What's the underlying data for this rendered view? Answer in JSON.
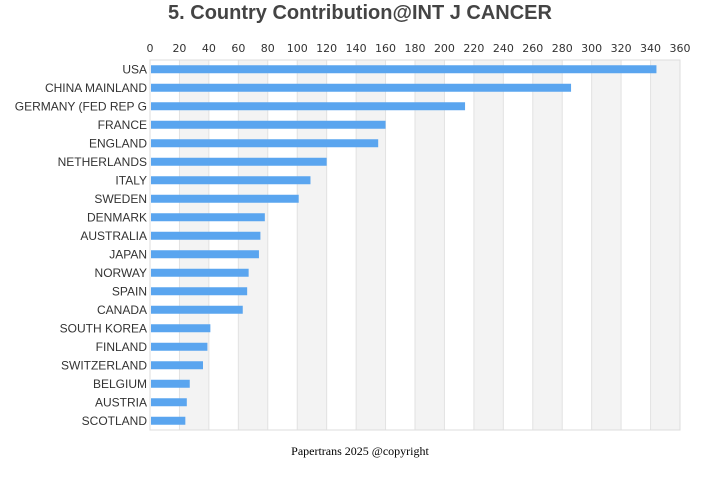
{
  "chart_data": {
    "type": "bar",
    "orientation": "horizontal",
    "title": "5. Country Contribution@INT J CANCER",
    "categories": [
      "USA",
      "CHINA MAINLAND",
      "GERMANY (FED REP G",
      "FRANCE",
      "ENGLAND",
      "NETHERLANDS",
      "ITALY",
      "SWEDEN",
      "DENMARK",
      "AUSTRALIA",
      "JAPAN",
      "NORWAY",
      "SPAIN",
      "CANADA",
      "SOUTH KOREA",
      "FINLAND",
      "SWITZERLAND",
      "BELGIUM",
      "AUSTRIA",
      "SCOTLAND"
    ],
    "values": [
      344,
      286,
      214,
      160,
      155,
      120,
      109,
      101,
      78,
      75,
      74,
      67,
      66,
      63,
      41,
      39,
      36,
      27,
      25,
      24
    ],
    "xlim": [
      0,
      360
    ],
    "xticks": [
      0,
      20,
      40,
      60,
      80,
      100,
      120,
      140,
      160,
      180,
      200,
      220,
      240,
      260,
      280,
      300,
      320,
      340,
      360
    ],
    "xaxis_position": "top",
    "grid": "vertical-bands",
    "bar_color": "#5aa5ef",
    "band_color": "#f3f3f3"
  },
  "footer": "Papertrans 2025 @copyright"
}
